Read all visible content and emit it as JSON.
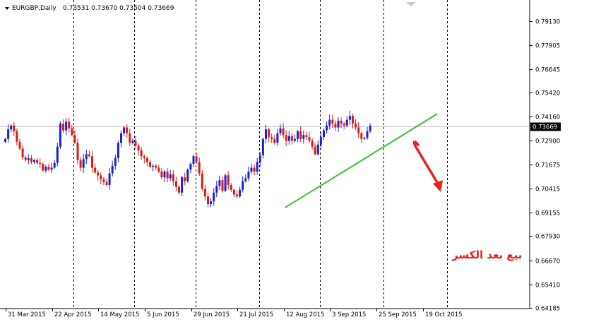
{
  "header": {
    "symbol": "EURGBP,Daily",
    "ohlc": "0.73531 0.73670 0.73504 0.73669"
  },
  "annotation": {
    "text": "بيع بعد الكسر",
    "color": "#e8211c"
  },
  "colors": {
    "bull": "#1f1fd0",
    "bear": "#d81b1b",
    "trendline": "#33c433",
    "current_line": "#c0c0c0",
    "price_label_bg": "#000000"
  },
  "chart_data": {
    "type": "candlestick",
    "symbol": "EURGBP",
    "timeframe": "Daily",
    "current_price": 0.73669,
    "current_price_label": "0.73669",
    "ylim": [
      0.6415,
      0.8025
    ],
    "y_ticks": [
      {
        "value": 0.7913,
        "label": "0.79130"
      },
      {
        "value": 0.77905,
        "label": "0.77905"
      },
      {
        "value": 0.76645,
        "label": "0.76645"
      },
      {
        "value": 0.7542,
        "label": "0.75420"
      },
      {
        "value": 0.7416,
        "label": "0.74160"
      },
      {
        "value": 0.729,
        "label": "0.72900"
      },
      {
        "value": 0.71675,
        "label": "0.71675"
      },
      {
        "value": 0.70415,
        "label": "0.70415"
      },
      {
        "value": 0.69155,
        "label": "0.69155"
      },
      {
        "value": 0.6793,
        "label": "0.67930"
      },
      {
        "value": 0.6667,
        "label": "0.66670"
      },
      {
        "value": 0.6541,
        "label": "0.65410"
      },
      {
        "value": 0.64185,
        "label": "0.64185"
      }
    ],
    "x_labels": [
      {
        "bar": 1,
        "label": "31 Mar 2015"
      },
      {
        "bar": 17,
        "label": "22 Apr 2015"
      },
      {
        "bar": 33,
        "label": "14 May 2015"
      },
      {
        "bar": 49,
        "label": "5 Jun 2015"
      },
      {
        "bar": 65,
        "label": "29 Jun 2015"
      },
      {
        "bar": 81,
        "label": "21 Jul 2015"
      },
      {
        "bar": 97,
        "label": "12 Aug 2015"
      },
      {
        "bar": 113,
        "label": "3 Sep 2015"
      },
      {
        "bar": 129,
        "label": "25 Sep 2015"
      },
      {
        "bar": 145,
        "label": "19 Oct 2015"
      }
    ],
    "period_separators": [
      24,
      45,
      66,
      88,
      109,
      131,
      153
    ],
    "closes": [
      0.73,
      0.735,
      0.737,
      0.734,
      0.7285,
      0.725,
      0.7205,
      0.719,
      0.72,
      0.718,
      0.719,
      0.7175,
      0.717,
      0.7135,
      0.7155,
      0.714,
      0.715,
      0.7175,
      0.726,
      0.738,
      0.7345,
      0.739,
      0.7355,
      0.732,
      0.728,
      0.719,
      0.715,
      0.7195,
      0.722,
      0.721,
      0.715,
      0.7125,
      0.711,
      0.709,
      0.7075,
      0.706,
      0.712,
      0.716,
      0.72,
      0.728,
      0.733,
      0.736,
      0.733,
      0.728,
      0.729,
      0.7265,
      0.724,
      0.721,
      0.72,
      0.718,
      0.7155,
      0.716,
      0.715,
      0.713,
      0.71,
      0.713,
      0.7095,
      0.7115,
      0.708,
      0.705,
      0.702,
      0.71,
      0.708,
      0.714,
      0.717,
      0.721,
      0.718,
      0.712,
      0.704,
      0.7,
      0.696,
      0.6975,
      0.702,
      0.7055,
      0.7085,
      0.703,
      0.711,
      0.706,
      0.7035,
      0.701,
      0.7,
      0.7035,
      0.708,
      0.7095,
      0.713,
      0.715,
      0.713,
      0.718,
      0.7215,
      0.73,
      0.735,
      0.731,
      0.73,
      0.728,
      0.733,
      0.7355,
      0.732,
      0.729,
      0.7315,
      0.729,
      0.73,
      0.734,
      0.73,
      0.732,
      0.731,
      0.729,
      0.726,
      0.722,
      0.727,
      0.731,
      0.7345,
      0.737,
      0.74,
      0.738,
      0.736,
      0.7395,
      0.738,
      0.737,
      0.74,
      0.742,
      0.738,
      0.736,
      0.733,
      0.73,
      0.7305,
      0.734,
      0.7369
    ],
    "trendline": {
      "start": {
        "bar": 97,
        "value": 0.6942
      },
      "end": {
        "bar": 149.5,
        "value": 0.7431
      }
    }
  }
}
